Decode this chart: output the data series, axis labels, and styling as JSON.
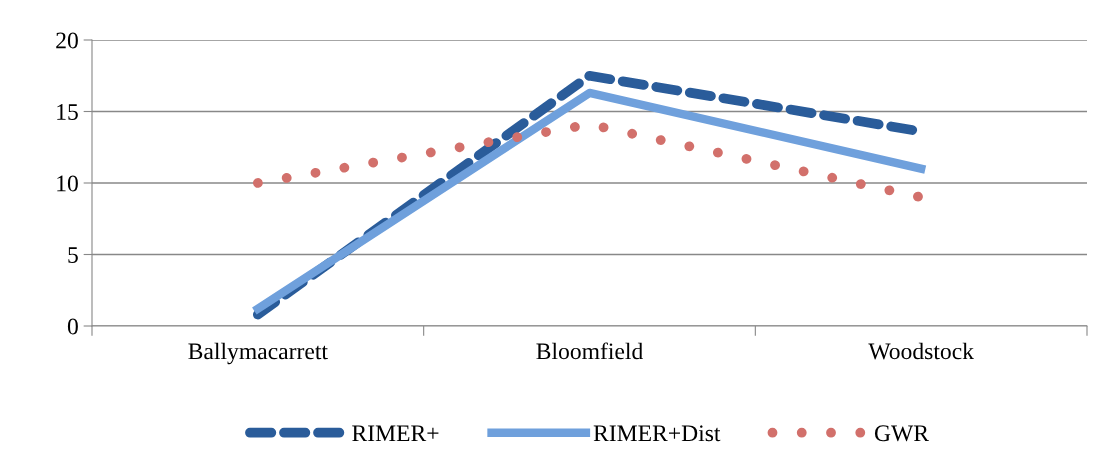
{
  "chart_data": {
    "type": "line",
    "categories": [
      "Ballymacarrett",
      "Bloomfield",
      "Woodstock"
    ],
    "series": [
      {
        "name": "RIMER+",
        "color": "#2a5c9a",
        "values": [
          0.8,
          17.5,
          13.6
        ],
        "line_style": "dashed"
      },
      {
        "name": "RIMER+Dist",
        "color": "#6fa0dc",
        "values": [
          1.2,
          16.3,
          11.0
        ],
        "line_style": "solid"
      },
      {
        "name": "GWR",
        "color": "#d2706b",
        "values": [
          10.0,
          14.1,
          9.0
        ],
        "line_style": "dotted"
      }
    ],
    "ylim": [
      0,
      20
    ],
    "yticks": [
      0,
      5,
      10,
      15,
      20
    ],
    "grid": "y",
    "legend": "bottom"
  }
}
